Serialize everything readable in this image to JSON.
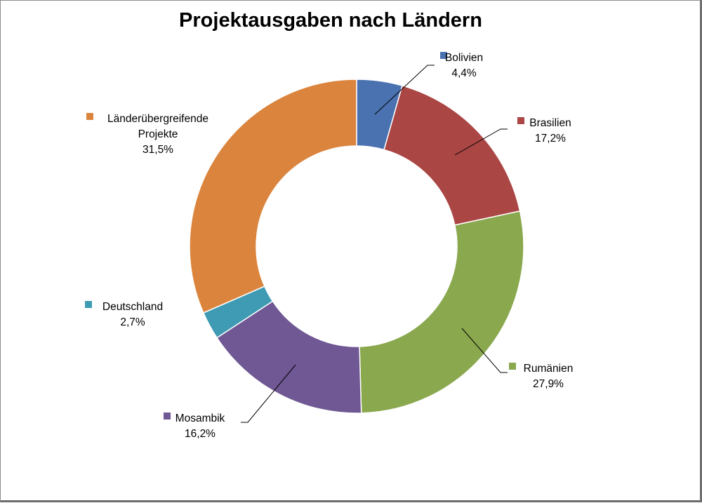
{
  "chart_data": {
    "type": "doughnut",
    "title": "Projektausgaben nach Ländern",
    "slices": [
      {
        "name": "Bolivien",
        "value": 4.4,
        "label": "4,4%",
        "color": "#4a72b1"
      },
      {
        "name": "Brasilien",
        "value": 17.2,
        "label": "17,2%",
        "color": "#aa4644"
      },
      {
        "name": "Rumänien",
        "value": 27.9,
        "label": "27,9%",
        "color": "#8aa84e"
      },
      {
        "name": "Mosambik",
        "value": 16.2,
        "label": "16,2%",
        "color": "#6f5893"
      },
      {
        "name": "Deutschland",
        "value": 2.7,
        "label": "2,7%",
        "color": "#3f9bb3"
      },
      {
        "name": [
          "Länderübergreifende",
          "Projekte"
        ],
        "value": 31.5,
        "label": "31,5%",
        "color": "#db843d"
      }
    ]
  }
}
